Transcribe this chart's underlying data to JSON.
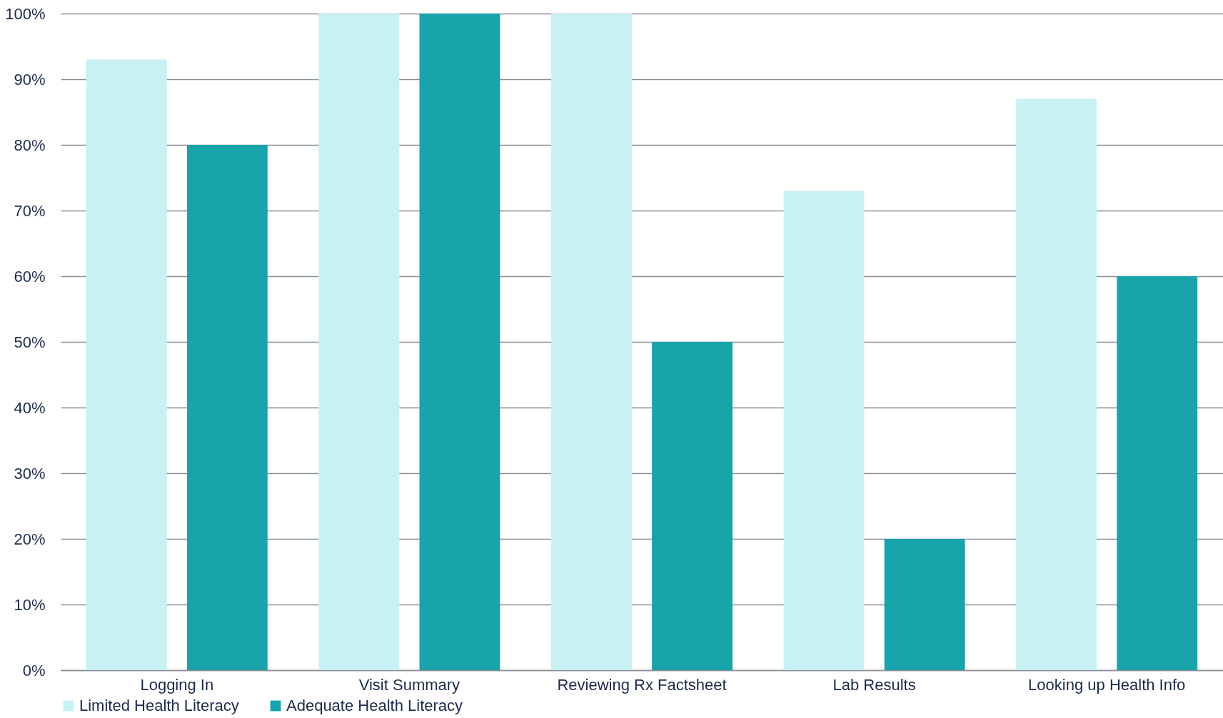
{
  "chart_data": {
    "type": "bar",
    "categories": [
      "Logging In",
      "Visit Summary",
      "Reviewing Rx Factsheet",
      "Lab Results",
      "Looking up Health Info"
    ],
    "series": [
      {
        "name": "Limited Health Literacy",
        "color": "#c8f1f4",
        "values": [
          93,
          100,
          100,
          73,
          87
        ]
      },
      {
        "name": "Adequate Health Literacy",
        "color": "#19a3ab",
        "values": [
          80,
          100,
          50,
          20,
          60
        ]
      }
    ],
    "ylim": [
      0,
      100
    ],
    "yticks": [
      {
        "value": 0,
        "label": "0%"
      },
      {
        "value": 10,
        "label": "10%"
      },
      {
        "value": 20,
        "label": "20%"
      },
      {
        "value": 30,
        "label": "30%"
      },
      {
        "value": 40,
        "label": "40%"
      },
      {
        "value": 50,
        "label": "50%"
      },
      {
        "value": 60,
        "label": "60%"
      },
      {
        "value": 70,
        "label": "70%"
      },
      {
        "value": 80,
        "label": "80%"
      },
      {
        "value": 90,
        "label": "90%"
      },
      {
        "value": 100,
        "label": "100%"
      }
    ],
    "grid": "y",
    "legend": "bottom"
  }
}
